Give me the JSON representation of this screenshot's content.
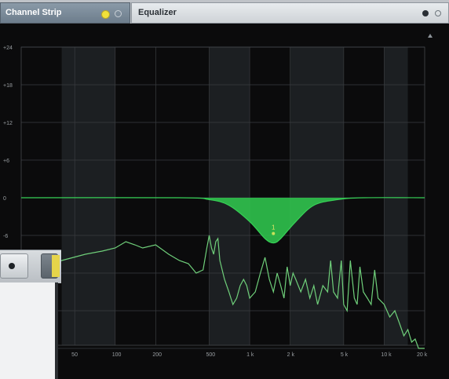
{
  "tabs": {
    "channel_strip": "Channel Strip",
    "equalizer": "Equalizer"
  },
  "colors": {
    "eq_fill": "#2fbf4c",
    "eq_line": "#37d157",
    "spectrum": "#6fcf7a",
    "grid": "#3a3d40",
    "band_light": "#1c1f22"
  },
  "icons": {
    "record_dot": "filled-circle",
    "power": "ring",
    "collapse": "triangle-up"
  },
  "eq_node_label": "1",
  "chart_data": {
    "type": "line",
    "y_ticks": [
      "+24",
      "+18",
      "+12",
      "+6",
      "0",
      "-6"
    ],
    "x_ticks": [
      "50",
      "100",
      "200",
      "500",
      "1 k",
      "2 k",
      "5 k",
      "10 k",
      "20 k"
    ],
    "x_scale": "log",
    "x_range_hz": [
      20,
      20000
    ],
    "y_range_db": [
      -24,
      24
    ],
    "grid": true,
    "eq_curve": {
      "points_hz_db": [
        [
          20,
          0
        ],
        [
          300,
          0
        ],
        [
          500,
          -0.3
        ],
        [
          700,
          -1.2
        ],
        [
          1000,
          -3.8
        ],
        [
          1300,
          -6.5
        ],
        [
          1500,
          -7.2
        ],
        [
          1700,
          -6.5
        ],
        [
          2200,
          -3.8
        ],
        [
          3000,
          -1.2
        ],
        [
          4500,
          -0.3
        ],
        [
          7000,
          0
        ],
        [
          20000,
          0
        ]
      ]
    },
    "eq_node": {
      "freq_hz": 1500,
      "gain_db": -7.2
    },
    "spectrum": {
      "points_hz_db": [
        [
          20,
          -13
        ],
        [
          40,
          -10
        ],
        [
          60,
          -9
        ],
        [
          80,
          -8.5
        ],
        [
          100,
          -8
        ],
        [
          120,
          -7
        ],
        [
          140,
          -7.5
        ],
        [
          160,
          -8
        ],
        [
          200,
          -7.5
        ],
        [
          250,
          -9
        ],
        [
          300,
          -10
        ],
        [
          350,
          -10.5
        ],
        [
          400,
          -12
        ],
        [
          450,
          -11.5
        ],
        [
          480,
          -8
        ],
        [
          500,
          -6
        ],
        [
          520,
          -8
        ],
        [
          540,
          -9
        ],
        [
          560,
          -7
        ],
        [
          580,
          -6.5
        ],
        [
          600,
          -10
        ],
        [
          650,
          -13
        ],
        [
          700,
          -15
        ],
        [
          750,
          -17
        ],
        [
          800,
          -16
        ],
        [
          850,
          -14
        ],
        [
          900,
          -13
        ],
        [
          950,
          -14
        ],
        [
          1000,
          -16
        ],
        [
          1100,
          -15
        ],
        [
          1200,
          -12
        ],
        [
          1300,
          -9.5
        ],
        [
          1400,
          -13
        ],
        [
          1500,
          -15
        ],
        [
          1600,
          -12
        ],
        [
          1700,
          -14
        ],
        [
          1800,
          -16
        ],
        [
          1900,
          -11
        ],
        [
          2000,
          -14
        ],
        [
          2100,
          -12
        ],
        [
          2200,
          -13
        ],
        [
          2400,
          -15
        ],
        [
          2600,
          -13
        ],
        [
          2800,
          -16
        ],
        [
          3000,
          -14
        ],
        [
          3200,
          -17
        ],
        [
          3500,
          -14
        ],
        [
          3800,
          -15
        ],
        [
          4000,
          -10
        ],
        [
          4200,
          -15
        ],
        [
          4500,
          -16
        ],
        [
          4800,
          -10
        ],
        [
          5000,
          -17
        ],
        [
          5300,
          -18
        ],
        [
          5600,
          -10
        ],
        [
          6000,
          -16
        ],
        [
          6300,
          -17
        ],
        [
          6600,
          -11
        ],
        [
          7000,
          -15
        ],
        [
          7500,
          -16
        ],
        [
          8000,
          -17
        ],
        [
          8500,
          -11.5
        ],
        [
          9000,
          -16
        ],
        [
          10000,
          -17
        ],
        [
          11000,
          -19
        ],
        [
          12000,
          -18
        ],
        [
          13000,
          -20
        ],
        [
          14000,
          -22
        ],
        [
          15000,
          -21
        ],
        [
          16000,
          -23
        ],
        [
          17000,
          -22.5
        ],
        [
          18000,
          -24
        ],
        [
          20000,
          -24
        ]
      ]
    }
  }
}
